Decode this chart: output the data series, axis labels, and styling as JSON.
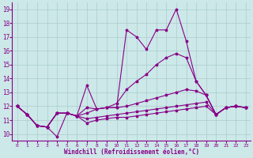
{
  "xlabel": "Windchill (Refroidissement éolien,°C)",
  "xlim": [
    -0.5,
    23.5
  ],
  "ylim": [
    9.5,
    19.5
  ],
  "yticks": [
    10,
    11,
    12,
    13,
    14,
    15,
    16,
    17,
    18,
    19
  ],
  "xticks": [
    0,
    1,
    2,
    3,
    4,
    5,
    6,
    7,
    8,
    9,
    10,
    11,
    12,
    13,
    14,
    15,
    16,
    17,
    18,
    19,
    20,
    21,
    22,
    23
  ],
  "background_color": "#cce8e8",
  "grid_color": "#aacccc",
  "line_color": "#880088",
  "lines": [
    [
      12.0,
      11.4,
      10.6,
      10.5,
      9.8,
      11.5,
      11.3,
      13.5,
      11.8,
      11.9,
      11.9,
      17.5,
      17.0,
      16.1,
      17.5,
      17.5,
      19.0,
      16.7,
      13.8,
      12.8,
      11.4,
      11.9,
      12.0,
      11.9
    ],
    [
      12.0,
      11.4,
      10.6,
      10.5,
      11.5,
      11.5,
      11.3,
      11.9,
      11.8,
      11.9,
      12.2,
      13.2,
      13.8,
      14.3,
      15.0,
      15.5,
      15.8,
      15.5,
      13.8,
      12.8,
      11.4,
      11.9,
      12.0,
      11.9
    ],
    [
      12.0,
      11.4,
      10.6,
      10.5,
      11.5,
      11.5,
      11.3,
      11.5,
      11.8,
      11.9,
      11.9,
      12.0,
      12.2,
      12.4,
      12.6,
      12.8,
      13.0,
      13.2,
      13.1,
      12.8,
      11.4,
      11.9,
      12.0,
      11.9
    ],
    [
      12.0,
      11.4,
      10.6,
      10.5,
      11.5,
      11.5,
      11.3,
      11.1,
      11.2,
      11.3,
      11.4,
      11.5,
      11.6,
      11.7,
      11.8,
      11.9,
      12.0,
      12.1,
      12.2,
      12.3,
      11.4,
      11.9,
      12.0,
      11.9
    ],
    [
      12.0,
      11.4,
      10.6,
      10.5,
      11.5,
      11.5,
      11.3,
      10.8,
      11.0,
      11.1,
      11.2,
      11.2,
      11.3,
      11.4,
      11.5,
      11.6,
      11.7,
      11.8,
      11.9,
      12.0,
      11.4,
      11.9,
      12.0,
      11.9
    ]
  ]
}
